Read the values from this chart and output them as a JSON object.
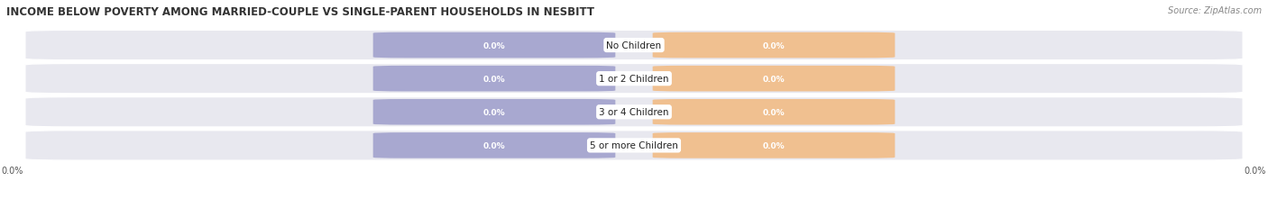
{
  "title": "INCOME BELOW POVERTY AMONG MARRIED-COUPLE VS SINGLE-PARENT HOUSEHOLDS IN NESBITT",
  "source": "Source: ZipAtlas.com",
  "categories": [
    "No Children",
    "1 or 2 Children",
    "3 or 4 Children",
    "5 or more Children"
  ],
  "married_values": [
    0.0,
    0.0,
    0.0,
    0.0
  ],
  "single_values": [
    0.0,
    0.0,
    0.0,
    0.0
  ],
  "married_color": "#a8a8d0",
  "single_color": "#f0c090",
  "row_bg_color": "#e0e0e8",
  "title_fontsize": 8.5,
  "source_fontsize": 7,
  "bar_label_fontsize": 6.5,
  "category_fontsize": 7.5,
  "legend_fontsize": 7.5,
  "tick_fontsize": 7
}
